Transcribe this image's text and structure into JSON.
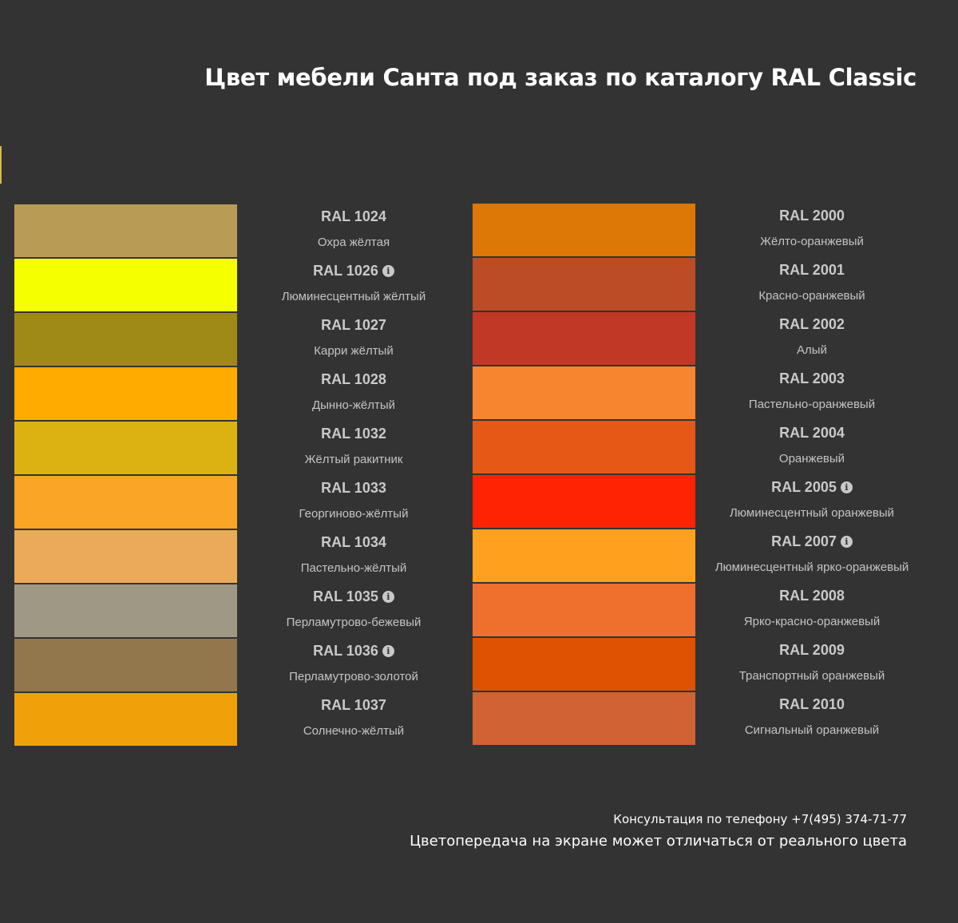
{
  "title": "Цвет мебели Санта под заказ по каталогу RAL Classic",
  "left_column": [
    {
      "code": "RAL 1024",
      "name": "Охра жёлтая",
      "color": "#b89c56",
      "info": false
    },
    {
      "code": "RAL 1026",
      "name": "Люминесцентный жёлтый",
      "color": "#f5ff00",
      "info": true
    },
    {
      "code": "RAL 1027",
      "name": "Карри жёлтый",
      "color": "#a08a17",
      "info": false
    },
    {
      "code": "RAL 1028",
      "name": "Дынно-жёлтый",
      "color": "#ffab00",
      "info": false
    },
    {
      "code": "RAL 1032",
      "name": "Жёлтый ракитник",
      "color": "#dcb212",
      "info": false
    },
    {
      "code": "RAL 1033",
      "name": "Георгиново-жёлтый",
      "color": "#faa525",
      "info": false
    },
    {
      "code": "RAL 1034",
      "name": "Пастельно-жёлтый",
      "color": "#eba95a",
      "info": false
    },
    {
      "code": "RAL 1035",
      "name": "Перламутрово-бежевый",
      "color": "#9f9884",
      "info": true
    },
    {
      "code": "RAL 1036",
      "name": "Перламутрово-золотой",
      "color": "#92764c",
      "info": true
    },
    {
      "code": "RAL 1037",
      "name": "Солнечно-жёлтый",
      "color": "#f0a10a",
      "info": false
    }
  ],
  "right_column": [
    {
      "code": "RAL 2000",
      "name": "Жёлто-оранжевый",
      "color": "#dd7706",
      "info": false
    },
    {
      "code": "RAL 2001",
      "name": "Красно-оранжевый",
      "color": "#bb4c26",
      "info": false
    },
    {
      "code": "RAL 2002",
      "name": "Алый",
      "color": "#c23827",
      "info": false
    },
    {
      "code": "RAL 2003",
      "name": "Пастельно-оранжевый",
      "color": "#f7842f",
      "info": false
    },
    {
      "code": "RAL 2004",
      "name": "Оранжевый",
      "color": "#e65816",
      "info": false
    },
    {
      "code": "RAL 2005",
      "name": "Люминесцентный оранжевый",
      "color": "#ff2304",
      "info": true
    },
    {
      "code": "RAL 2007",
      "name": "Люминесцентный ярко-оранжевый",
      "color": "#ffa01e",
      "info": true
    },
    {
      "code": "RAL 2008",
      "name": "Ярко-красно-оранжевый",
      "color": "#ef6f2d",
      "info": false
    },
    {
      "code": "RAL 2009",
      "name": "Транспортный оранжевый",
      "color": "#de5201",
      "info": false
    },
    {
      "code": "RAL 2010",
      "name": "Сигнальный оранжевый",
      "color": "#d06233",
      "info": false
    }
  ],
  "footer": {
    "phone": "Консультация по телефону +7(495) 374-71-77",
    "note": "Цветопередача на экране может отличаться от реального цвета"
  },
  "info_icon_glyph": "i"
}
